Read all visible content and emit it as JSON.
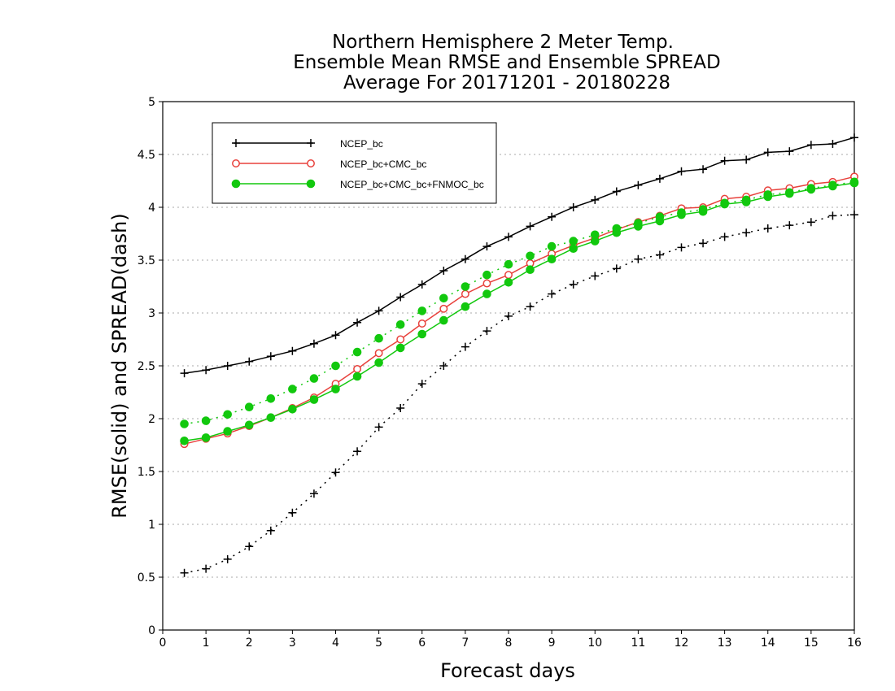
{
  "chart_data": {
    "type": "line",
    "title_lines": [
      "Northern Hemisphere 2 Meter Temp.",
      "Ensemble Mean RMSE and Ensemble SPREAD",
      "Average For 20171201 - 20180228"
    ],
    "xlabel": "Forecast days",
    "ylabel": "RMSE(solid) and SPREAD(dash)",
    "xlim": [
      0,
      16
    ],
    "ylim": [
      0,
      5
    ],
    "x_ticks": [
      0,
      1,
      2,
      3,
      4,
      5,
      6,
      7,
      8,
      9,
      10,
      11,
      12,
      13,
      14,
      15,
      16
    ],
    "y_ticks": [
      0,
      0.5,
      1,
      1.5,
      2,
      2.5,
      3,
      3.5,
      4,
      4.5,
      5
    ],
    "y_grid_dotted": true,
    "legend_position": "top-left",
    "x": [
      0.5,
      1,
      1.5,
      2,
      2.5,
      3,
      3.5,
      4,
      4.5,
      5,
      5.5,
      6,
      6.5,
      7,
      7.5,
      8,
      8.5,
      9,
      9.5,
      10,
      10.5,
      11,
      11.5,
      12,
      12.5,
      13,
      13.5,
      14,
      14.5,
      15,
      15.5,
      16
    ],
    "series": [
      {
        "name": "NCEP_bc",
        "color": "#000000",
        "marker": "plus",
        "rmse": [
          2.43,
          2.46,
          2.5,
          2.54,
          2.59,
          2.64,
          2.71,
          2.79,
          2.91,
          3.02,
          3.15,
          3.27,
          3.4,
          3.51,
          3.63,
          3.72,
          3.82,
          3.91,
          4.0,
          4.07,
          4.15,
          4.21,
          4.27,
          4.34,
          4.36,
          4.44,
          4.45,
          4.52,
          4.53,
          4.59,
          4.6,
          4.66
        ],
        "spread": [
          0.54,
          0.58,
          0.67,
          0.79,
          0.94,
          1.11,
          1.29,
          1.49,
          1.69,
          1.92,
          2.1,
          2.33,
          2.5,
          2.68,
          2.83,
          2.97,
          3.06,
          3.18,
          3.27,
          3.35,
          3.42,
          3.51,
          3.55,
          3.62,
          3.66,
          3.72,
          3.76,
          3.8,
          3.83,
          3.86,
          3.92,
          3.93
        ]
      },
      {
        "name": "NCEP_bc+CMC_bc",
        "color": "#e8413c",
        "marker": "open-circle",
        "rmse": [
          1.76,
          1.81,
          1.86,
          1.93,
          2.01,
          2.1,
          2.2,
          2.33,
          2.47,
          2.62,
          2.75,
          2.9,
          3.04,
          3.18,
          3.28,
          3.36,
          3.47,
          3.56,
          3.64,
          3.71,
          3.79,
          3.86,
          3.92,
          3.99,
          4.0,
          4.08,
          4.1,
          4.16,
          4.18,
          4.22,
          4.24,
          4.29
        ],
        "spread": []
      },
      {
        "name": "NCEP_bc+CMC_bc+FNMOC_bc",
        "color": "#12c80e",
        "marker": "filled-circle",
        "rmse": [
          1.79,
          1.82,
          1.88,
          1.94,
          2.01,
          2.09,
          2.18,
          2.28,
          2.4,
          2.53,
          2.67,
          2.8,
          2.93,
          3.06,
          3.18,
          3.29,
          3.41,
          3.51,
          3.61,
          3.68,
          3.76,
          3.82,
          3.87,
          3.93,
          3.96,
          4.03,
          4.05,
          4.1,
          4.13,
          4.17,
          4.2,
          4.23
        ],
        "spread": [
          1.95,
          1.98,
          2.04,
          2.11,
          2.19,
          2.28,
          2.38,
          2.5,
          2.63,
          2.76,
          2.89,
          3.02,
          3.14,
          3.25,
          3.36,
          3.46,
          3.54,
          3.63,
          3.68,
          3.74,
          3.8,
          3.85,
          3.91,
          3.95,
          3.98,
          4.04,
          4.07,
          4.12,
          4.14,
          4.18,
          4.21,
          4.24
        ]
      }
    ]
  }
}
